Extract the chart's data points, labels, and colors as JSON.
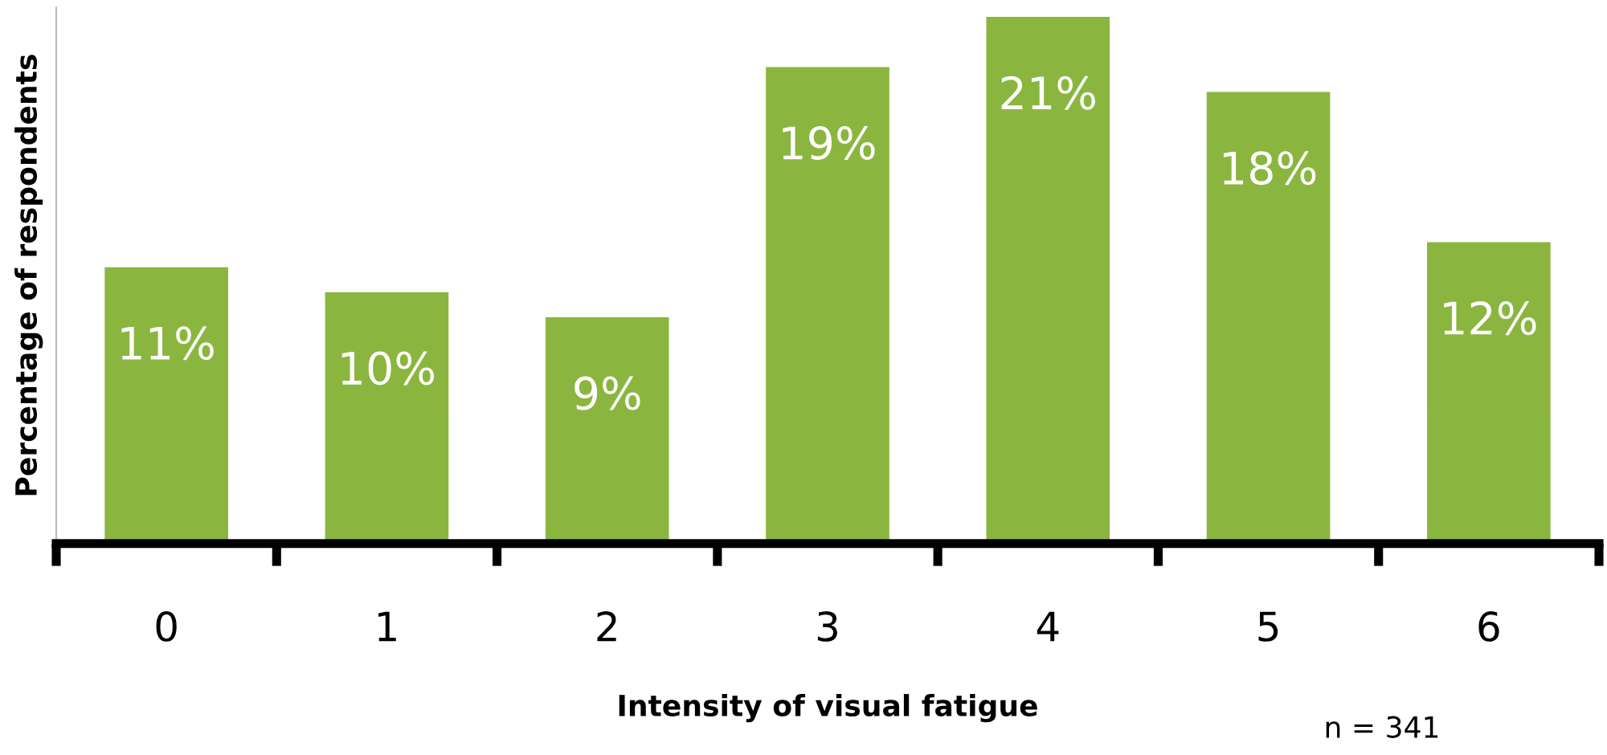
{
  "chart_data": {
    "type": "bar",
    "xlabel": "Intensity of visual fatigue",
    "ylabel": "Percentage of respondents",
    "categories": [
      "0",
      "1",
      "2",
      "3",
      "4",
      "5",
      "6"
    ],
    "values": [
      11,
      10,
      9,
      19,
      21,
      18,
      12
    ],
    "value_labels": [
      "11%",
      "10%",
      "9%",
      "19%",
      "21%",
      "18%",
      "12%"
    ],
    "color": "#8ab63f",
    "annotations": [
      "n = 341"
    ],
    "grid": false
  }
}
